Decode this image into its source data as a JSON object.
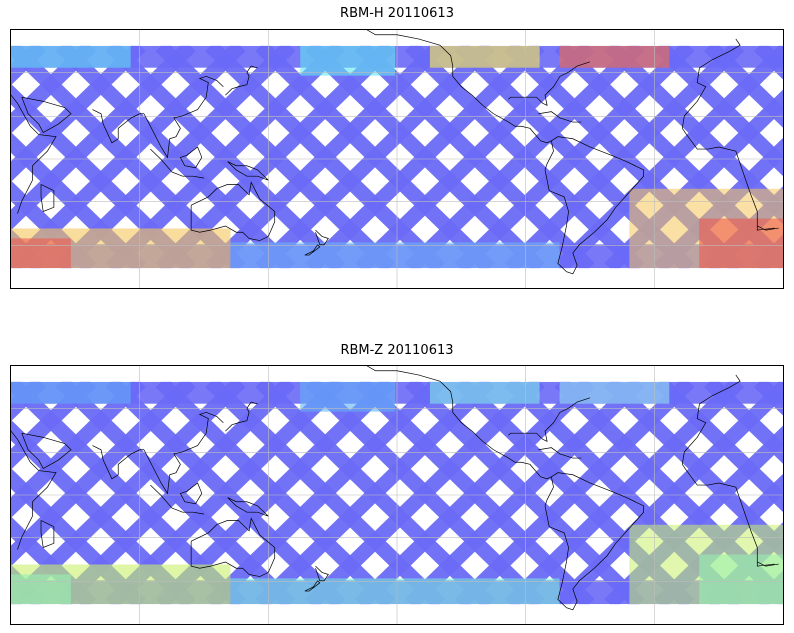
{
  "figure": {
    "panels": [
      {
        "title": "RBM-H 20110613",
        "lat_extent": [
          -70,
          70
        ],
        "color_zones": {
          "north": "#63e6f0",
          "north_hot": "#f2e35a",
          "north_hot2": "#f06b4f",
          "south": "#6fb8f7",
          "south_hot": "#f5c65a",
          "south_hot2": "#ee5a4f"
        }
      },
      {
        "title": "RBM-Z 20110613",
        "lat_extent": [
          -70,
          70
        ],
        "color_zones": {
          "north": "#63b3f7",
          "north_hot": "#7ee0e8",
          "north_hot2": "#8fd6f0",
          "south": "#7cf0d8",
          "south_hot": "#c8f06a",
          "south_hot2": "#98f0b0"
        }
      }
    ],
    "swath_color": "#6a6af7",
    "grid_color": "#bdbdbd",
    "coastline_color": "#000000",
    "map_projection": "plate-carree, centered on 180"
  }
}
